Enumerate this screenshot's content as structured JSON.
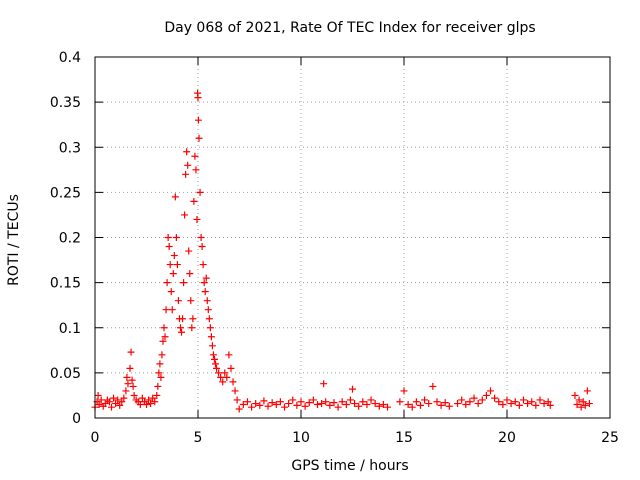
{
  "chart_data": {
    "type": "scatter",
    "title": "Day 068 of 2021, Rate Of TEC Index for receiver glps",
    "xlabel": "GPS time / hours",
    "ylabel": "ROTI / TECUs",
    "xlim": [
      0,
      25
    ],
    "ylim": [
      0,
      0.4
    ],
    "xticks": [
      "0",
      "5",
      "10",
      "15",
      "20",
      "25"
    ],
    "yticks": [
      "0",
      "0.05",
      "0.1",
      "0.15",
      "0.2",
      "0.25",
      "0.3",
      "0.35",
      "0.4"
    ],
    "grid": true,
    "marker": "+",
    "color": "#ff0000",
    "series": [
      {
        "points": [
          [
            0.0,
            0.012
          ],
          [
            0.1,
            0.018
          ],
          [
            0.15,
            0.025
          ],
          [
            0.2,
            0.015
          ],
          [
            0.3,
            0.02
          ],
          [
            0.4,
            0.013
          ],
          [
            0.5,
            0.016
          ],
          [
            0.6,
            0.02
          ],
          [
            0.7,
            0.018
          ],
          [
            0.8,
            0.012
          ],
          [
            0.9,
            0.022
          ],
          [
            1.0,
            0.016
          ],
          [
            1.1,
            0.02
          ],
          [
            1.2,
            0.014
          ],
          [
            1.3,
            0.018
          ],
          [
            1.4,
            0.022
          ],
          [
            1.5,
            0.03
          ],
          [
            1.55,
            0.045
          ],
          [
            1.6,
            0.038
          ],
          [
            1.7,
            0.055
          ],
          [
            1.75,
            0.073
          ],
          [
            1.8,
            0.042
          ],
          [
            1.85,
            0.035
          ],
          [
            1.9,
            0.025
          ],
          [
            2.0,
            0.02
          ],
          [
            2.1,
            0.018
          ],
          [
            2.2,
            0.015
          ],
          [
            2.3,
            0.022
          ],
          [
            2.4,
            0.018
          ],
          [
            2.5,
            0.015
          ],
          [
            2.6,
            0.02
          ],
          [
            2.7,
            0.016
          ],
          [
            2.8,
            0.022
          ],
          [
            2.9,
            0.018
          ],
          [
            3.0,
            0.025
          ],
          [
            3.05,
            0.035
          ],
          [
            3.1,
            0.05
          ],
          [
            3.15,
            0.06
          ],
          [
            3.2,
            0.045
          ],
          [
            3.25,
            0.07
          ],
          [
            3.3,
            0.085
          ],
          [
            3.35,
            0.1
          ],
          [
            3.4,
            0.09
          ],
          [
            3.45,
            0.12
          ],
          [
            3.5,
            0.15
          ],
          [
            3.55,
            0.2
          ],
          [
            3.6,
            0.19
          ],
          [
            3.65,
            0.17
          ],
          [
            3.7,
            0.14
          ],
          [
            3.75,
            0.12
          ],
          [
            3.8,
            0.16
          ],
          [
            3.85,
            0.18
          ],
          [
            3.9,
            0.245
          ],
          [
            3.95,
            0.2
          ],
          [
            4.0,
            0.17
          ],
          [
            4.05,
            0.13
          ],
          [
            4.1,
            0.11
          ],
          [
            4.15,
            0.1
          ],
          [
            4.2,
            0.095
          ],
          [
            4.25,
            0.11
          ],
          [
            4.3,
            0.15
          ],
          [
            4.35,
            0.225
          ],
          [
            4.4,
            0.27
          ],
          [
            4.45,
            0.295
          ],
          [
            4.5,
            0.28
          ],
          [
            4.55,
            0.185
          ],
          [
            4.6,
            0.16
          ],
          [
            4.65,
            0.13
          ],
          [
            4.7,
            0.1
          ],
          [
            4.75,
            0.11
          ],
          [
            4.8,
            0.24
          ],
          [
            4.85,
            0.29
          ],
          [
            4.9,
            0.275
          ],
          [
            4.95,
            0.22
          ],
          [
            4.98,
            0.36
          ],
          [
            5.0,
            0.355
          ],
          [
            5.02,
            0.33
          ],
          [
            5.05,
            0.31
          ],
          [
            5.1,
            0.25
          ],
          [
            5.15,
            0.2
          ],
          [
            5.2,
            0.19
          ],
          [
            5.25,
            0.17
          ],
          [
            5.3,
            0.15
          ],
          [
            5.35,
            0.14
          ],
          [
            5.4,
            0.155
          ],
          [
            5.45,
            0.13
          ],
          [
            5.5,
            0.12
          ],
          [
            5.55,
            0.11
          ],
          [
            5.6,
            0.1
          ],
          [
            5.65,
            0.09
          ],
          [
            5.7,
            0.08
          ],
          [
            5.75,
            0.07
          ],
          [
            5.8,
            0.065
          ],
          [
            5.85,
            0.06
          ],
          [
            5.9,
            0.055
          ],
          [
            6.0,
            0.05
          ],
          [
            6.1,
            0.045
          ],
          [
            6.2,
            0.04
          ],
          [
            6.3,
            0.05
          ],
          [
            6.4,
            0.045
          ],
          [
            6.5,
            0.07
          ],
          [
            6.6,
            0.055
          ],
          [
            6.7,
            0.04
          ],
          [
            6.8,
            0.03
          ],
          [
            6.9,
            0.02
          ],
          [
            7.0,
            0.01
          ],
          [
            7.2,
            0.015
          ],
          [
            7.4,
            0.018
          ],
          [
            7.6,
            0.012
          ],
          [
            7.8,
            0.016
          ],
          [
            8.0,
            0.014
          ],
          [
            8.2,
            0.019
          ],
          [
            8.4,
            0.013
          ],
          [
            8.6,
            0.017
          ],
          [
            8.8,
            0.015
          ],
          [
            9.0,
            0.018
          ],
          [
            9.2,
            0.012
          ],
          [
            9.4,
            0.016
          ],
          [
            9.6,
            0.02
          ],
          [
            9.8,
            0.014
          ],
          [
            10.0,
            0.018
          ],
          [
            10.2,
            0.013
          ],
          [
            10.4,
            0.017
          ],
          [
            10.6,
            0.02
          ],
          [
            10.8,
            0.015
          ],
          [
            11.0,
            0.016
          ],
          [
            11.1,
            0.038
          ],
          [
            11.2,
            0.018
          ],
          [
            11.4,
            0.014
          ],
          [
            11.6,
            0.017
          ],
          [
            11.8,
            0.012
          ],
          [
            12.0,
            0.018
          ],
          [
            12.2,
            0.015
          ],
          [
            12.4,
            0.02
          ],
          [
            12.5,
            0.032
          ],
          [
            12.6,
            0.016
          ],
          [
            12.8,
            0.013
          ],
          [
            13.0,
            0.018
          ],
          [
            13.2,
            0.015
          ],
          [
            13.4,
            0.02
          ],
          [
            13.6,
            0.016
          ],
          [
            13.8,
            0.013
          ],
          [
            14.0,
            0.015
          ],
          [
            14.2,
            0.012
          ],
          [
            14.8,
            0.018
          ],
          [
            15.0,
            0.03
          ],
          [
            15.2,
            0.015
          ],
          [
            15.4,
            0.012
          ],
          [
            15.6,
            0.018
          ],
          [
            15.8,
            0.014
          ],
          [
            16.0,
            0.02
          ],
          [
            16.2,
            0.016
          ],
          [
            16.4,
            0.035
          ],
          [
            16.6,
            0.018
          ],
          [
            16.8,
            0.014
          ],
          [
            17.0,
            0.017
          ],
          [
            17.2,
            0.013
          ],
          [
            17.6,
            0.016
          ],
          [
            17.8,
            0.02
          ],
          [
            18.0,
            0.015
          ],
          [
            18.2,
            0.018
          ],
          [
            18.4,
            0.022
          ],
          [
            18.6,
            0.016
          ],
          [
            18.8,
            0.02
          ],
          [
            19.0,
            0.025
          ],
          [
            19.2,
            0.03
          ],
          [
            19.4,
            0.022
          ],
          [
            19.6,
            0.018
          ],
          [
            19.8,
            0.015
          ],
          [
            20.0,
            0.02
          ],
          [
            20.2,
            0.016
          ],
          [
            20.4,
            0.018
          ],
          [
            20.6,
            0.014
          ],
          [
            20.8,
            0.02
          ],
          [
            21.0,
            0.016
          ],
          [
            21.2,
            0.018
          ],
          [
            21.4,
            0.014
          ],
          [
            21.6,
            0.02
          ],
          [
            21.8,
            0.016
          ],
          [
            22.0,
            0.018
          ],
          [
            22.1,
            0.014
          ],
          [
            23.3,
            0.025
          ],
          [
            23.4,
            0.015
          ],
          [
            23.5,
            0.02
          ],
          [
            23.6,
            0.012
          ],
          [
            23.7,
            0.018
          ],
          [
            23.8,
            0.014
          ],
          [
            23.9,
            0.03
          ],
          [
            24.0,
            0.016
          ]
        ]
      }
    ]
  }
}
